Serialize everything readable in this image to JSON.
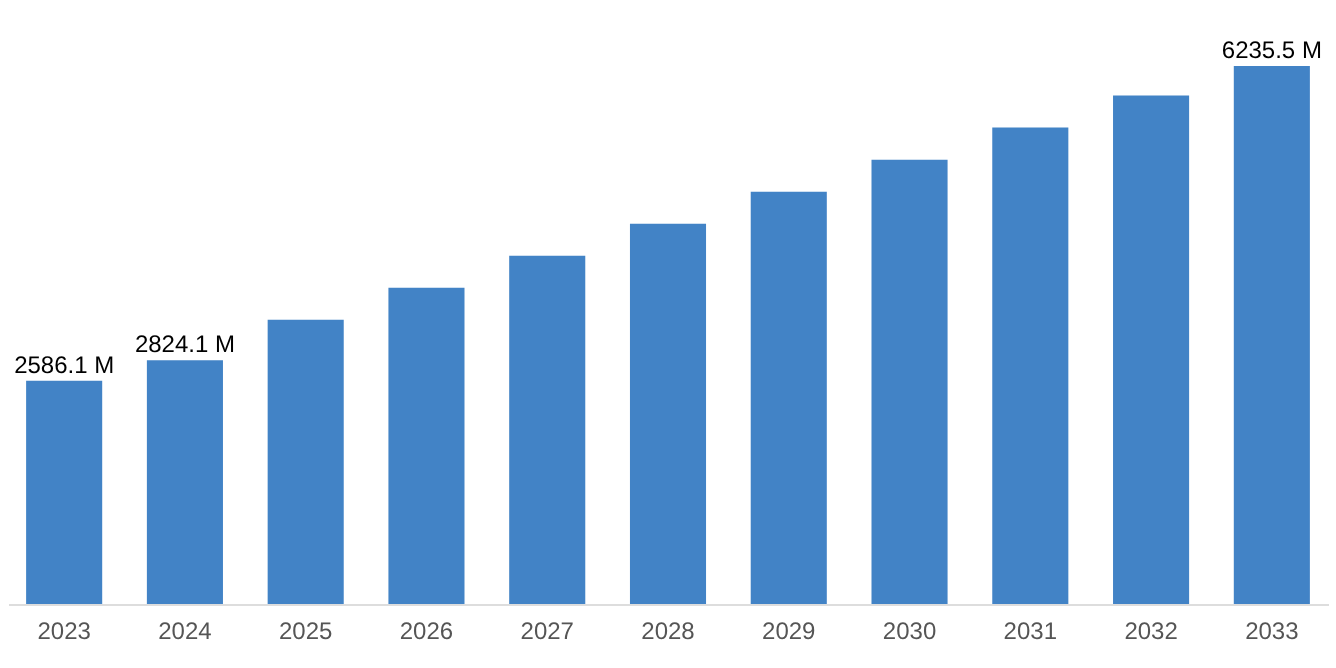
{
  "chart_data": {
    "type": "bar",
    "categories": [
      "2023",
      "2024",
      "2025",
      "2026",
      "2027",
      "2028",
      "2029",
      "2030",
      "2031",
      "2032",
      "2033"
    ],
    "values": [
      2586.1,
      2824.1,
      3294,
      3666,
      4037,
      4408,
      4779,
      5150,
      5522,
      5893,
      6235.5
    ],
    "value_labels": [
      "2586.1 M",
      "2824.1 M",
      null,
      null,
      null,
      null,
      null,
      null,
      null,
      null,
      "6235.5 M"
    ],
    "color": "#4283c6",
    "tick_labels": "x"
  }
}
